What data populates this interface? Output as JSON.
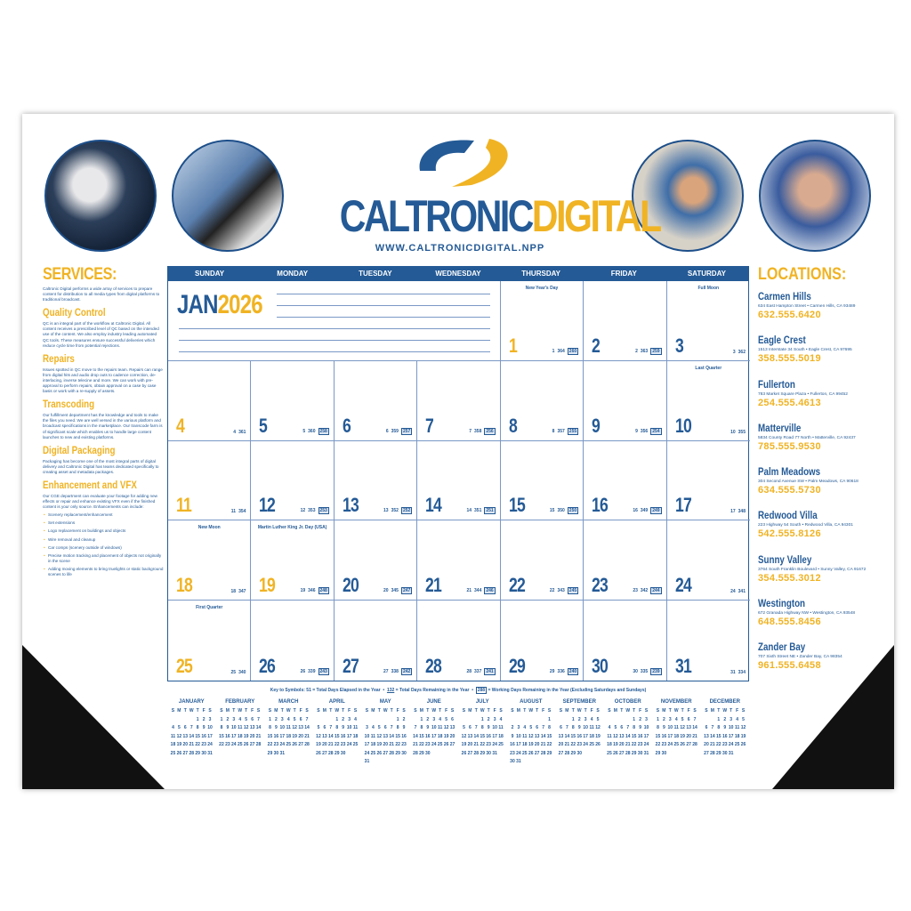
{
  "brand": {
    "name_blue": "CALTRONIC",
    "name_yellow": "DIGITAL",
    "url": "WWW.CALTRONICDIGITAL.NPP"
  },
  "colors": {
    "blue": "#245a96",
    "yellow": "#f0b323"
  },
  "photos": [
    "technician-with-tablet-photo",
    "tablet-and-keyboard-photo",
    "man-at-laptop-photo",
    "hand-on-touchscreen-photo"
  ],
  "services": {
    "title": "SERVICES:",
    "intro": "Caltronic Digital performs a wide array of services to prepare content for distribution to all media types from digital platforms to traditional broadcast.",
    "sections": [
      {
        "heading": "Quality Control",
        "text": "QC is an integral part of the workflow at Caltronic Digital. All content receives a prescribed level of QC based on the intended use of the content. We also employ industry leading automated QC tools. These measures ensure successful deliveries which reduce cycle time from potential rejections."
      },
      {
        "heading": "Repairs",
        "text": "Issues spotted in QC move to the repairs team. Repairs can range from digital hits and audio drop outs to cadence correction, de-interlacing, inverse telecine and more. We can work with pre-approval to perform repairs, obtain approval on a case by case basis or work with a re-supply of assets."
      },
      {
        "heading": "Transcoding",
        "text": "Our fulfillment department has the knowledge and tools to make the files you need. We are well versed in the various platform and broadcast specifications in the marketplace. Our transcode farm is of significant scale which enables us to handle large content launches to new and existing platforms."
      },
      {
        "heading": "Digital Packaging",
        "text": "Packaging has become one of the most integral parts of digital delivery and Caltronic Digital has teams dedicated specifically to creating asset and metadata packages."
      },
      {
        "heading": "Enhancement and VFX",
        "text": "Our CGE department can evaluate your footage for adding new effects or repair and enhance existing VFX even if the finished content is your only source. Enhancements can include:"
      }
    ],
    "bullets": [
      "Scenery replacement/enhancement",
      "Set extensions",
      "Logo replacement on buildings and objects",
      "Wire removal and cleanup",
      "Car comps (scenery outside of windows)",
      "Precise motion tracking and placement of objects not originally in the scene",
      "Adding moving elements to bring truelights or static background scenes to life"
    ]
  },
  "locations": {
    "title": "LOCATIONS:",
    "items": [
      {
        "name": "Carmen Hills",
        "address": "634 East Hampton Street • Carmen Hills, CA 93489",
        "phone": "632.555.6420"
      },
      {
        "name": "Eagle Crest",
        "address": "1513 Interstate 34 South • Eagle Crest, CA 97695",
        "phone": "358.555.5019"
      },
      {
        "name": "Fullerton",
        "address": "783 Market Square Plaza • Fullerton, CA 99452",
        "phone": "254.555.4613"
      },
      {
        "name": "Matterville",
        "address": "5834 County Road 77 North • Matterville, CA 92437",
        "phone": "785.555.9530"
      },
      {
        "name": "Palm Meadows",
        "address": "304 Second Avenue SW • Palm Meadows, CA 90618",
        "phone": "634.555.5730"
      },
      {
        "name": "Redwood Villa",
        "address": "223 Highway 54 South • Redwood Villa, CA 94301",
        "phone": "542.555.8126"
      },
      {
        "name": "Sunny Valley",
        "address": "3764 South Franklin Boulevard • Sunny Valley, CA 91672",
        "phone": "354.555.3012"
      },
      {
        "name": "Westington",
        "address": "672 Granada Highway NW • Westington, CA 93548",
        "phone": "648.555.8456"
      },
      {
        "name": "Zander Bay",
        "address": "707 Sixth Street NE • Zander Bay, CA 98354",
        "phone": "961.555.6458"
      }
    ]
  },
  "calendar": {
    "month": "JAN",
    "year": "2026",
    "weekdays": [
      "SUNDAY",
      "MONDAY",
      "TUESDAY",
      "WEDNESDAY",
      "THURSDAY",
      "FRIDAY",
      "SATURDAY"
    ],
    "days": [
      {
        "day": "1",
        "note": "New Year's Day",
        "elapsed": "1",
        "remaining": "364",
        "working": "260",
        "highlight": true
      },
      {
        "day": "2",
        "elapsed": "2",
        "remaining": "363",
        "working": "259"
      },
      {
        "day": "3",
        "note": "Full Moon",
        "elapsed": "3",
        "remaining": "362"
      },
      {
        "day": "4",
        "elapsed": "4",
        "remaining": "361",
        "highlight": true
      },
      {
        "day": "5",
        "elapsed": "5",
        "remaining": "360",
        "working": "258"
      },
      {
        "day": "6",
        "elapsed": "6",
        "remaining": "359",
        "working": "257"
      },
      {
        "day": "7",
        "elapsed": "7",
        "remaining": "358",
        "working": "256"
      },
      {
        "day": "8",
        "elapsed": "8",
        "remaining": "357",
        "working": "255"
      },
      {
        "day": "9",
        "elapsed": "9",
        "remaining": "356",
        "working": "254"
      },
      {
        "day": "10",
        "note": "Last Quarter",
        "elapsed": "10",
        "remaining": "355"
      },
      {
        "day": "11",
        "elapsed": "11",
        "remaining": "354",
        "highlight": true
      },
      {
        "day": "12",
        "elapsed": "12",
        "remaining": "353",
        "working": "253"
      },
      {
        "day": "13",
        "elapsed": "13",
        "remaining": "352",
        "working": "252"
      },
      {
        "day": "14",
        "elapsed": "14",
        "remaining": "351",
        "working": "251"
      },
      {
        "day": "15",
        "elapsed": "15",
        "remaining": "350",
        "working": "250"
      },
      {
        "day": "16",
        "elapsed": "16",
        "remaining": "349",
        "working": "249"
      },
      {
        "day": "17",
        "elapsed": "17",
        "remaining": "348"
      },
      {
        "day": "18",
        "note": "New Moon",
        "elapsed": "18",
        "remaining": "347",
        "highlight": true
      },
      {
        "day": "19",
        "note": "Martin Luther King Jr. Day (USA)",
        "elapsed": "19",
        "remaining": "346",
        "working": "248",
        "highlight": true
      },
      {
        "day": "20",
        "elapsed": "20",
        "remaining": "345",
        "working": "247"
      },
      {
        "day": "21",
        "elapsed": "21",
        "remaining": "344",
        "working": "246"
      },
      {
        "day": "22",
        "elapsed": "22",
        "remaining": "343",
        "working": "245"
      },
      {
        "day": "23",
        "elapsed": "23",
        "remaining": "342",
        "working": "244"
      },
      {
        "day": "24",
        "elapsed": "24",
        "remaining": "341"
      },
      {
        "day": "25",
        "note": "First Quarter",
        "elapsed": "25",
        "remaining": "340",
        "highlight": true
      },
      {
        "day": "26",
        "elapsed": "26",
        "remaining": "339",
        "working": "243"
      },
      {
        "day": "27",
        "elapsed": "27",
        "remaining": "338",
        "working": "242"
      },
      {
        "day": "28",
        "elapsed": "28",
        "remaining": "337",
        "working": "241"
      },
      {
        "day": "29",
        "elapsed": "29",
        "remaining": "336",
        "working": "240"
      },
      {
        "day": "30",
        "elapsed": "30",
        "remaining": "335",
        "working": "239"
      },
      {
        "day": "31",
        "elapsed": "31",
        "remaining": "334"
      }
    ],
    "key": {
      "prefix": "Key to Symbols:",
      "ex1": "51",
      "t1": "= Total Days Elapsed in the Year",
      "ex2": "132",
      "t2": "= Total Days Remaining in the Year",
      "ex3": "288",
      "t3": "= Working Days Remaining in the Year (Excluding Saturdays and Sundays)"
    }
  },
  "mini_calendars": {
    "weekday_initials": [
      "S",
      "M",
      "T",
      "W",
      "T",
      "F",
      "S"
    ],
    "months": [
      "JANUARY",
      "FEBRUARY",
      "MARCH",
      "APRIL",
      "MAY",
      "JUNE",
      "JULY",
      "AUGUST",
      "SEPTEMBER",
      "OCTOBER",
      "NOVEMBER",
      "DECEMBER"
    ]
  }
}
